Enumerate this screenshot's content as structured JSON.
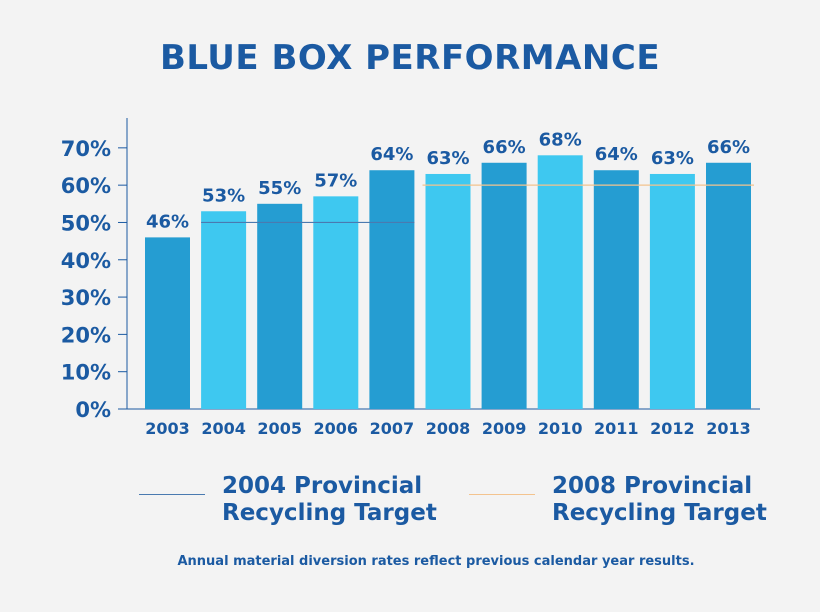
{
  "colors": {
    "dark_bar": "#259dd2",
    "light_bar": "#3ec8f0",
    "text": "#1b5aa2",
    "target_2004": "#4a7ab0",
    "target_2008": "#f3c38e",
    "background": "#f3f3f3"
  },
  "chart_data": {
    "type": "bar",
    "title": "BLUE BOX PERFORMANCE",
    "categories": [
      "2003",
      "2004",
      "2005",
      "2006",
      "2007",
      "2008",
      "2009",
      "2010",
      "2011",
      "2012",
      "2013"
    ],
    "values": [
      46,
      53,
      55,
      57,
      64,
      63,
      66,
      68,
      64,
      63,
      66
    ],
    "data_labels": [
      "46%",
      "53%",
      "55%",
      "57%",
      "64%",
      "63%",
      "66%",
      "68%",
      "64%",
      "63%",
      "66%"
    ],
    "bar_colors": [
      "dark",
      "light",
      "dark",
      "light",
      "dark",
      "light",
      "dark",
      "light",
      "dark",
      "light",
      "dark"
    ],
    "y_ticks": [
      0,
      10,
      20,
      30,
      40,
      50,
      60,
      70
    ],
    "y_tick_labels": [
      "0%",
      "10%",
      "20%",
      "30%",
      "40%",
      "50%",
      "60%",
      "70%"
    ],
    "ylim": [
      0,
      78
    ],
    "unit": "%",
    "target_lines": [
      {
        "name": "2004 Provincial Recycling Target",
        "value": 50,
        "from_category": "2004",
        "to_category": "2007"
      },
      {
        "name": "2008 Provincial Recycling Target",
        "value": 60,
        "from_category": "2008",
        "to_category": "2013"
      }
    ],
    "grid": false,
    "legend_position": "bottom"
  },
  "legend": {
    "target_2004_line1": "2004 Provincial",
    "target_2004_line2": "Recycling Target",
    "target_2008_line1": "2008 Provincial",
    "target_2008_line2": "Recycling Target"
  },
  "footnote": "Annual material diversion rates reflect previous calendar year results."
}
